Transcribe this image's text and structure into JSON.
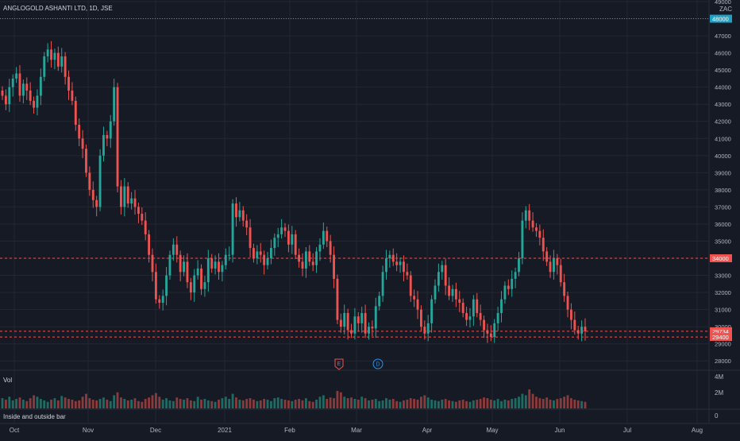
{
  "header": {
    "symbol_title": "ANGLOGOLD ASHANTI LTD, 1D, JSE",
    "currency": "ZAC"
  },
  "volume_pane": {
    "label": "Vol",
    "ticks": [
      "4M",
      "2M"
    ]
  },
  "indicator_pane": {
    "label": "Inside and outside bar",
    "tick": "0"
  },
  "colors": {
    "background": "#161a25",
    "up": "#26a69a",
    "down": "#ef5350",
    "inside_bar": "#f5d742",
    "grid": "#232733",
    "axis_text": "#b2b5be",
    "highlight_line": "#21a0c4"
  },
  "chart_data": {
    "type": "candlestick",
    "title": "ANGLOGOLD ASHANTI LTD, 1D, JSE",
    "y_unit": "ZAC",
    "ylim": [
      27500,
      49000
    ],
    "y_ticks": [
      28000,
      29000,
      30000,
      31000,
      32000,
      33000,
      34000,
      35000,
      36000,
      37000,
      38000,
      39000,
      40000,
      41000,
      42000,
      43000,
      44000,
      45000,
      46000,
      47000,
      48000,
      49000
    ],
    "x_ticks": [
      "Oct",
      "Nov",
      "Dec",
      "2021",
      "Feb",
      "Mar",
      "Apr",
      "May",
      "Jun",
      "Jul",
      "Aug"
    ],
    "grid": true,
    "horizontal_lines": [
      {
        "value": 48000,
        "label": "48000",
        "color": "#21a0c4",
        "style": "dotted"
      },
      {
        "value": 34000,
        "label": "34000",
        "color": "#ef5350",
        "style": "dashed"
      },
      {
        "value": 29734,
        "label": "29734",
        "color": "#ef5350",
        "style": "dashed"
      },
      {
        "value": 29400,
        "label": "29400",
        "color": "#ef5350",
        "style": "dashed"
      }
    ],
    "events": [
      {
        "symbol": "E",
        "label": "Earnings",
        "date": "Feb"
      },
      {
        "symbol": "D",
        "label": "Dividend",
        "date": "Mar"
      }
    ],
    "ohlc_closes": [
      43500,
      43000,
      44000,
      44500,
      44800,
      43500,
      44200,
      43800,
      43200,
      42800,
      43500,
      44600,
      45800,
      46200,
      45600,
      46000,
      45200,
      45800,
      44600,
      43800,
      43200,
      41800,
      41000,
      40400,
      39000,
      38000,
      37400,
      37000,
      40000,
      41200,
      41000,
      42000,
      44000,
      38200,
      37000,
      38200,
      37200,
      37500,
      37000,
      36600,
      36200,
      35400,
      34200,
      33200,
      31600,
      31400,
      31800,
      33000,
      34200,
      34800,
      34200,
      33200,
      33800,
      32600,
      32000,
      33000,
      33400,
      32200,
      32600,
      34000,
      33400,
      33800,
      33200,
      33600,
      34200,
      34200,
      37200,
      36400,
      36800,
      36200,
      35800,
      34600,
      34000,
      34400,
      34200,
      33600,
      34000,
      34600,
      35200,
      35400,
      35800,
      35600,
      34800,
      35400,
      34200,
      33800,
      33400,
      34400,
      33800,
      33600,
      34400,
      34800,
      35600,
      35000,
      34200,
      32800,
      30400,
      30000,
      30800,
      29800,
      29600,
      30600,
      30200,
      30800,
      29600,
      30000,
      29900,
      31200,
      31800,
      33200,
      34000,
      34200,
      33800,
      33600,
      33800,
      33200,
      33000,
      31800,
      31600,
      31000,
      30000,
      29600,
      30200,
      31600,
      32400,
      33200,
      33600,
      32400,
      31800,
      32200,
      31600,
      31400,
      30800,
      30400,
      30600,
      31600,
      30800,
      30400,
      29800,
      29600,
      29400,
      30200,
      30800,
      31600,
      32400,
      32200,
      32800,
      33200,
      34000,
      36200,
      36800,
      36200,
      35800,
      35600,
      35200,
      34400,
      33800,
      33200,
      34000,
      33600,
      32600,
      31800,
      31000,
      30400,
      29800,
      29600,
      30000,
      29734
    ],
    "volume_millions": [
      1.4,
      1.2,
      1.6,
      1.1,
      1.3,
      1.5,
      1.2,
      1.0,
      1.4,
      1.8,
      1.6,
      1.3,
      1.1,
      0.9,
      1.2,
      1.4,
      1.1,
      1.7,
      1.5,
      1.3,
      1.2,
      1.0,
      1.1,
      1.6,
      2.0,
      1.4,
      1.2,
      1.1,
      1.3,
      1.5,
      1.2,
      1.0,
      1.8,
      2.2,
      1.5,
      1.3,
      1.1,
      1.2,
      1.4,
      1.0,
      0.9,
      1.3,
      1.5,
      1.8,
      2.1,
      1.6,
      1.2,
      1.4,
      1.1,
      1.0,
      1.5,
      1.3,
      1.2,
      1.4,
      1.1,
      1.0,
      1.6,
      1.2,
      1.3,
      1.1,
      1.0,
      0.9,
      1.2,
      1.4,
      1.6,
      1.3,
      2.0,
      1.5,
      1.2,
      1.1,
      1.3,
      1.4,
      1.2,
      1.0,
      1.1,
      1.3,
      1.2,
      1.0,
      1.4,
      1.5,
      1.3,
      1.2,
      1.1,
      1.0,
      1.2,
      1.3,
      1.1,
      1.4,
      1.0,
      0.9,
      1.2,
      1.6,
      1.8,
      1.3,
      1.5,
      1.4,
      2.4,
      2.2,
      1.6,
      1.4,
      1.5,
      1.3,
      1.2,
      1.6,
      1.4,
      1.1,
      1.2,
      1.3,
      1.0,
      1.1,
      1.4,
      1.2,
      1.3,
      1.0,
      0.9,
      1.1,
      1.2,
      1.4,
      1.3,
      1.2,
      1.6,
      1.8,
      1.5,
      1.2,
      1.1,
      1.0,
      1.2,
      1.3,
      1.1,
      1.0,
      0.9,
      1.1,
      1.2,
      1.0,
      0.9,
      1.1,
      1.2,
      1.3,
      1.5,
      1.4,
      1.2,
      1.1,
      1.3,
      1.0,
      1.2,
      1.1,
      1.3,
      1.4,
      1.6,
      2.0,
      1.8,
      2.6,
      2.0,
      1.6,
      1.4,
      1.3,
      1.5,
      1.2,
      1.1,
      1.3,
      1.4,
      1.6,
      1.8,
      1.4,
      1.2,
      1.1,
      1.0,
      0.9
    ]
  }
}
